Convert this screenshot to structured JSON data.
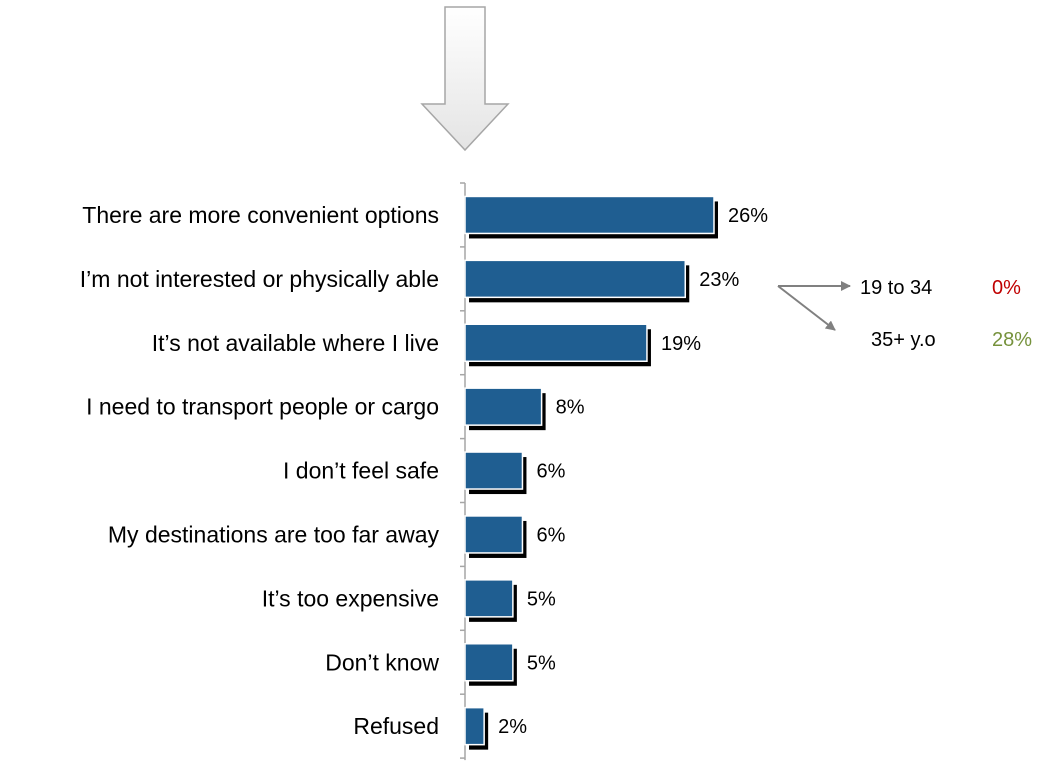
{
  "chart_data": {
    "type": "bar",
    "orientation": "horizontal",
    "categories": [
      "There are more convenient options",
      "I’m not interested or physically able",
      "It’s not available where I live",
      "I need to transport people or cargo",
      "I don’t feel safe",
      "My destinations are too far away",
      "It’s too expensive",
      "Don’t know",
      "Refused"
    ],
    "values": [
      26,
      23,
      19,
      8,
      6,
      6,
      5,
      5,
      2
    ],
    "value_labels": [
      "26%",
      "23%",
      "19%",
      "8%",
      "6%",
      "6%",
      "5%",
      "5%",
      "2%"
    ],
    "unit": "%",
    "title": "",
    "xlabel": "",
    "ylabel": "",
    "xlim": [
      0,
      26
    ],
    "grid": false,
    "legend": "none",
    "bar_color": "#1f5e91",
    "annotation": {
      "target_category": "I’m not interested or physically able",
      "breakdown": [
        {
          "label": "19 to 34",
          "value": "0%",
          "color": "#c00000"
        },
        {
          "label": "35+ y.o",
          "value": "28%",
          "color": "#76923c"
        }
      ]
    }
  },
  "decoration": {
    "top_arrow_icon": "down-arrow-icon",
    "arrow_color": "#808080"
  }
}
